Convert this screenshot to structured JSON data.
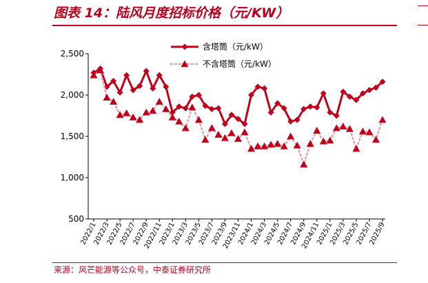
{
  "title": "图表 14：陆风月度招标价格（元/KW）",
  "source": "来源：风芒能源等公众号，中泰证券研究所",
  "colors": {
    "accent": "#b8001f",
    "series1": "#c0001a",
    "series2": "#c0001a"
  },
  "chart_data": {
    "type": "line",
    "title": "",
    "xlabel": "",
    "ylabel": "",
    "ylim": [
      500,
      2500
    ],
    "yticks": [
      500,
      1000,
      1500,
      2000,
      2500
    ],
    "ytick_labels": [
      "500",
      "1,000",
      "1,500",
      "2,000",
      "2,500"
    ],
    "grid": false,
    "legend": "top",
    "x_labels": [
      "2022/1",
      "2022/3",
      "2022/5",
      "2022/7",
      "2022/9",
      "2022/11",
      "2023/1",
      "2023/3",
      "2023/5",
      "2023/7",
      "2023/9",
      "2023/11",
      "2024/1",
      "2024/3",
      "2024/5",
      "2024/7",
      "2024/9",
      "2024/11",
      "2025/1",
      "2025/3",
      "2025/5",
      "2025/7",
      "2025/9"
    ],
    "x": [
      "2022/1",
      "2022/2",
      "2022/3",
      "2022/4",
      "2022/5",
      "2022/6",
      "2022/7",
      "2022/8",
      "2022/9",
      "2022/10",
      "2022/11",
      "2022/12",
      "2023/1",
      "2023/2",
      "2023/3",
      "2023/4",
      "2023/5",
      "2023/6",
      "2023/7",
      "2023/8",
      "2023/9",
      "2023/10",
      "2023/11",
      "2023/12",
      "2024/1",
      "2024/2",
      "2024/3",
      "2024/4",
      "2024/5",
      "2024/6",
      "2024/7",
      "2024/8",
      "2024/9",
      "2024/10",
      "2024/11",
      "2024/12",
      "2025/1",
      "2025/2",
      "2025/3",
      "2025/4",
      "2025/5",
      "2025/6",
      "2025/7",
      "2025/8",
      "2025/9"
    ],
    "series": [
      {
        "name": "含塔筒（元/kW）",
        "style": "solid-diamond",
        "values": [
          2270,
          2320,
          2100,
          2170,
          2030,
          2240,
          2060,
          2110,
          2290,
          2080,
          2240,
          2100,
          1790,
          1860,
          1840,
          1980,
          2000,
          1870,
          1830,
          1840,
          1650,
          1760,
          1710,
          1650,
          2000,
          2100,
          2080,
          1790,
          1900,
          1840,
          1680,
          1700,
          1830,
          1860,
          1850,
          2020,
          1790,
          1750,
          2040,
          1980,
          1940,
          2020,
          2060,
          2090,
          2160
        ]
      },
      {
        "name": "不含塔筒（元/kW）",
        "style": "dotted-triangle",
        "values": [
          2240,
          2300,
          1970,
          1920,
          1760,
          1780,
          1730,
          1700,
          1790,
          1810,
          1920,
          1830,
          1730,
          1680,
          1600,
          1850,
          1700,
          1460,
          1600,
          1520,
          1480,
          1540,
          1470,
          1550,
          1350,
          1380,
          1380,
          1400,
          1410,
          1380,
          1500,
          1390,
          1160,
          1410,
          1570,
          1440,
          1450,
          1600,
          1620,
          1590,
          1350,
          1560,
          1550,
          1460,
          1700
        ]
      }
    ]
  }
}
